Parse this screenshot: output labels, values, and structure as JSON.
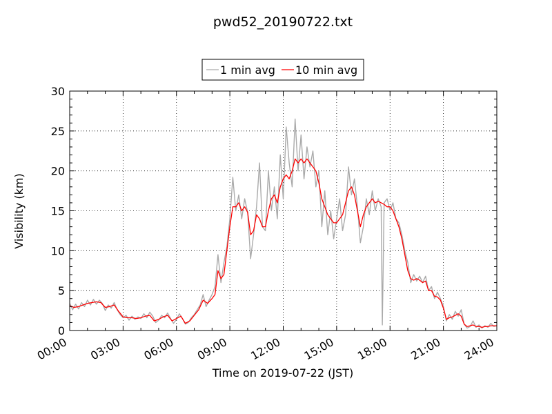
{
  "chart_data": {
    "type": "line",
    "title": "pwd52_20190722.txt",
    "xlabel": "Time on 2019-07-22 (JST)",
    "ylabel": "Visibility (km)",
    "xlim": [
      "00:00",
      "24:00"
    ],
    "ylim": [
      0,
      30
    ],
    "x_ticks": [
      "00:00",
      "03:00",
      "06:00",
      "09:00",
      "12:00",
      "15:00",
      "18:00",
      "21:00",
      "24:00"
    ],
    "y_ticks": [
      "0",
      "5",
      "10",
      "15",
      "20",
      "25",
      "30"
    ],
    "grid": true,
    "legend_position": "top-center",
    "series": [
      {
        "name": "1 min avg",
        "color": "#aaaaaa",
        "points": [
          [
            "00:00",
            3.4
          ],
          [
            "00:10",
            2.6
          ],
          [
            "00:20",
            3.3
          ],
          [
            "00:30",
            2.7
          ],
          [
            "00:40",
            3.5
          ],
          [
            "00:50",
            3.0
          ],
          [
            "01:00",
            3.8
          ],
          [
            "01:10",
            3.2
          ],
          [
            "01:20",
            3.9
          ],
          [
            "01:30",
            3.3
          ],
          [
            "01:40",
            3.8
          ],
          [
            "01:50",
            3.4
          ],
          [
            "02:00",
            2.5
          ],
          [
            "02:10",
            3.2
          ],
          [
            "02:20",
            2.8
          ],
          [
            "02:30",
            3.5
          ],
          [
            "02:40",
            2.6
          ],
          [
            "02:50",
            2.0
          ],
          [
            "03:00",
            1.6
          ],
          [
            "03:10",
            1.9
          ],
          [
            "03:20",
            1.3
          ],
          [
            "03:30",
            1.8
          ],
          [
            "03:40",
            1.4
          ],
          [
            "03:50",
            1.7
          ],
          [
            "04:00",
            1.5
          ],
          [
            "04:10",
            2.1
          ],
          [
            "04:20",
            1.6
          ],
          [
            "04:30",
            2.3
          ],
          [
            "04:40",
            1.8
          ],
          [
            "04:50",
            1.0
          ],
          [
            "05:00",
            1.3
          ],
          [
            "05:10",
            1.9
          ],
          [
            "05:20",
            1.6
          ],
          [
            "05:30",
            2.2
          ],
          [
            "05:40",
            1.5
          ],
          [
            "05:50",
            0.9
          ],
          [
            "06:00",
            1.4
          ],
          [
            "06:10",
            2.1
          ],
          [
            "06:20",
            1.5
          ],
          [
            "06:30",
            0.8
          ],
          [
            "06:40",
            1.0
          ],
          [
            "06:50",
            1.6
          ],
          [
            "07:00",
            2.0
          ],
          [
            "07:10",
            2.6
          ],
          [
            "07:20",
            3.2
          ],
          [
            "07:30",
            4.5
          ],
          [
            "07:40",
            3.0
          ],
          [
            "07:50",
            3.8
          ],
          [
            "08:00",
            4.5
          ],
          [
            "08:10",
            5.5
          ],
          [
            "08:20",
            9.5
          ],
          [
            "08:30",
            6.0
          ],
          [
            "08:40",
            8.5
          ],
          [
            "08:50",
            10.5
          ],
          [
            "09:00",
            14.0
          ],
          [
            "09:10",
            19.2
          ],
          [
            "09:20",
            15.0
          ],
          [
            "09:30",
            17.0
          ],
          [
            "09:40",
            14.0
          ],
          [
            "09:50",
            16.5
          ],
          [
            "10:00",
            14.8
          ],
          [
            "10:10",
            9.0
          ],
          [
            "10:20",
            12.0
          ],
          [
            "10:30",
            15.5
          ],
          [
            "10:40",
            21.0
          ],
          [
            "10:50",
            13.0
          ],
          [
            "11:00",
            12.5
          ],
          [
            "11:10",
            20.0
          ],
          [
            "11:20",
            15.0
          ],
          [
            "11:30",
            18.0
          ],
          [
            "11:40",
            14.0
          ],
          [
            "11:50",
            22.0
          ],
          [
            "12:00",
            16.5
          ],
          [
            "12:10",
            25.5
          ],
          [
            "12:20",
            21.0
          ],
          [
            "12:30",
            18.0
          ],
          [
            "12:40",
            26.5
          ],
          [
            "12:50",
            20.0
          ],
          [
            "13:00",
            24.5
          ],
          [
            "13:10",
            19.0
          ],
          [
            "13:20",
            23.0
          ],
          [
            "13:30",
            20.5
          ],
          [
            "13:40",
            22.5
          ],
          [
            "13:50",
            18.0
          ],
          [
            "14:00",
            20.0
          ],
          [
            "14:10",
            13.0
          ],
          [
            "14:20",
            17.5
          ],
          [
            "14:30",
            12.0
          ],
          [
            "14:40",
            15.0
          ],
          [
            "14:50",
            11.5
          ],
          [
            "15:00",
            14.0
          ],
          [
            "15:10",
            16.5
          ],
          [
            "15:20",
            12.5
          ],
          [
            "15:30",
            14.5
          ],
          [
            "15:40",
            20.5
          ],
          [
            "15:50",
            17.0
          ],
          [
            "16:00",
            19.0
          ],
          [
            "16:10",
            15.5
          ],
          [
            "16:20",
            11.0
          ],
          [
            "16:30",
            13.0
          ],
          [
            "16:40",
            16.5
          ],
          [
            "16:50",
            14.5
          ],
          [
            "17:00",
            17.5
          ],
          [
            "17:10",
            15.0
          ],
          [
            "17:20",
            16.5
          ],
          [
            "17:30",
            15.5
          ],
          [
            "17:34",
            0.7
          ],
          [
            "17:40",
            16.0
          ],
          [
            "17:50",
            16.5
          ],
          [
            "18:00",
            15.0
          ],
          [
            "18:10",
            16.0
          ],
          [
            "18:20",
            14.0
          ],
          [
            "18:30",
            13.5
          ],
          [
            "18:40",
            12.0
          ],
          [
            "18:50",
            10.0
          ],
          [
            "19:00",
            8.5
          ],
          [
            "19:10",
            6.0
          ],
          [
            "19:20",
            7.0
          ],
          [
            "19:30",
            6.2
          ],
          [
            "19:40",
            6.8
          ],
          [
            "19:50",
            6.0
          ],
          [
            "20:00",
            6.8
          ],
          [
            "20:10",
            5.0
          ],
          [
            "20:20",
            5.5
          ],
          [
            "20:30",
            4.0
          ],
          [
            "20:40",
            4.8
          ],
          [
            "20:50",
            4.0
          ],
          [
            "21:00",
            3.0
          ],
          [
            "21:10",
            1.2
          ],
          [
            "21:20",
            2.0
          ],
          [
            "21:30",
            1.4
          ],
          [
            "21:40",
            2.4
          ],
          [
            "21:50",
            1.8
          ],
          [
            "22:00",
            2.6
          ],
          [
            "22:10",
            0.8
          ],
          [
            "22:20",
            0.3
          ],
          [
            "22:30",
            0.5
          ],
          [
            "22:40",
            1.2
          ],
          [
            "22:50",
            0.4
          ],
          [
            "23:00",
            0.7
          ],
          [
            "23:10",
            0.3
          ],
          [
            "23:20",
            0.6
          ],
          [
            "23:30",
            0.4
          ],
          [
            "23:40",
            0.9
          ],
          [
            "23:50",
            0.5
          ],
          [
            "24:00",
            0.6
          ]
        ]
      },
      {
        "name": "10 min avg",
        "color": "#ff0000",
        "points": [
          [
            "00:00",
            3.1
          ],
          [
            "00:15",
            2.9
          ],
          [
            "00:30",
            3.0
          ],
          [
            "00:45",
            3.2
          ],
          [
            "01:00",
            3.4
          ],
          [
            "01:15",
            3.5
          ],
          [
            "01:30",
            3.6
          ],
          [
            "01:45",
            3.5
          ],
          [
            "02:00",
            2.9
          ],
          [
            "02:15",
            3.0
          ],
          [
            "02:30",
            3.2
          ],
          [
            "02:45",
            2.4
          ],
          [
            "03:00",
            1.7
          ],
          [
            "03:15",
            1.6
          ],
          [
            "03:30",
            1.6
          ],
          [
            "03:45",
            1.5
          ],
          [
            "04:00",
            1.6
          ],
          [
            "04:15",
            1.8
          ],
          [
            "04:30",
            1.9
          ],
          [
            "04:45",
            1.2
          ],
          [
            "05:00",
            1.4
          ],
          [
            "05:15",
            1.7
          ],
          [
            "05:30",
            1.9
          ],
          [
            "05:45",
            1.2
          ],
          [
            "06:00",
            1.5
          ],
          [
            "06:15",
            1.8
          ],
          [
            "06:30",
            0.9
          ],
          [
            "06:45",
            1.2
          ],
          [
            "07:00",
            1.9
          ],
          [
            "07:15",
            2.6
          ],
          [
            "07:30",
            3.8
          ],
          [
            "07:45",
            3.4
          ],
          [
            "08:00",
            4.0
          ],
          [
            "08:10",
            4.5
          ],
          [
            "08:20",
            7.5
          ],
          [
            "08:30",
            6.5
          ],
          [
            "08:40",
            7.0
          ],
          [
            "08:50",
            10.0
          ],
          [
            "09:00",
            13.0
          ],
          [
            "09:10",
            15.5
          ],
          [
            "09:20",
            15.5
          ],
          [
            "09:30",
            16.0
          ],
          [
            "09:40",
            15.0
          ],
          [
            "09:50",
            15.5
          ],
          [
            "10:00",
            14.8
          ],
          [
            "10:10",
            12.0
          ],
          [
            "10:20",
            12.5
          ],
          [
            "10:30",
            14.5
          ],
          [
            "10:40",
            14.0
          ],
          [
            "10:50",
            13.0
          ],
          [
            "11:00",
            13.0
          ],
          [
            "11:10",
            15.0
          ],
          [
            "11:20",
            16.5
          ],
          [
            "11:30",
            17.0
          ],
          [
            "11:40",
            16.0
          ],
          [
            "11:50",
            18.0
          ],
          [
            "12:00",
            19.0
          ],
          [
            "12:10",
            19.5
          ],
          [
            "12:20",
            19.0
          ],
          [
            "12:30",
            20.0
          ],
          [
            "12:40",
            21.5
          ],
          [
            "12:50",
            21.0
          ],
          [
            "13:00",
            21.5
          ],
          [
            "13:10",
            21.0
          ],
          [
            "13:20",
            21.5
          ],
          [
            "13:30",
            21.0
          ],
          [
            "13:40",
            20.5
          ],
          [
            "13:50",
            20.0
          ],
          [
            "14:00",
            18.5
          ],
          [
            "14:10",
            16.5
          ],
          [
            "14:20",
            15.5
          ],
          [
            "14:30",
            14.5
          ],
          [
            "14:40",
            14.0
          ],
          [
            "14:50",
            13.5
          ],
          [
            "15:00",
            13.5
          ],
          [
            "15:10",
            14.0
          ],
          [
            "15:20",
            14.5
          ],
          [
            "15:30",
            16.0
          ],
          [
            "15:40",
            17.5
          ],
          [
            "15:50",
            18.0
          ],
          [
            "16:00",
            17.0
          ],
          [
            "16:10",
            15.0
          ],
          [
            "16:20",
            13.0
          ],
          [
            "16:30",
            14.5
          ],
          [
            "16:40",
            15.5
          ],
          [
            "16:50",
            16.0
          ],
          [
            "17:00",
            16.5
          ],
          [
            "17:10",
            16.0
          ],
          [
            "17:20",
            16.2
          ],
          [
            "17:30",
            16.0
          ],
          [
            "17:40",
            15.8
          ],
          [
            "17:50",
            15.5
          ],
          [
            "18:00",
            15.5
          ],
          [
            "18:10",
            15.0
          ],
          [
            "18:20",
            14.0
          ],
          [
            "18:30",
            13.0
          ],
          [
            "18:40",
            11.5
          ],
          [
            "18:50",
            9.5
          ],
          [
            "19:00",
            7.5
          ],
          [
            "19:10",
            6.5
          ],
          [
            "19:20",
            6.3
          ],
          [
            "19:30",
            6.5
          ],
          [
            "19:40",
            6.3
          ],
          [
            "19:50",
            6.0
          ],
          [
            "20:00",
            6.2
          ],
          [
            "20:10",
            5.0
          ],
          [
            "20:20",
            5.0
          ],
          [
            "20:30",
            4.3
          ],
          [
            "20:40",
            4.2
          ],
          [
            "20:50",
            3.8
          ],
          [
            "21:00",
            2.8
          ],
          [
            "21:10",
            1.4
          ],
          [
            "21:20",
            1.6
          ],
          [
            "21:30",
            1.7
          ],
          [
            "21:40",
            1.9
          ],
          [
            "21:50",
            2.1
          ],
          [
            "22:00",
            1.8
          ],
          [
            "22:10",
            0.8
          ],
          [
            "22:20",
            0.5
          ],
          [
            "22:30",
            0.6
          ],
          [
            "22:40",
            0.7
          ],
          [
            "22:50",
            0.5
          ],
          [
            "23:00",
            0.5
          ],
          [
            "23:10",
            0.4
          ],
          [
            "23:20",
            0.5
          ],
          [
            "23:30",
            0.5
          ],
          [
            "23:40",
            0.6
          ],
          [
            "23:50",
            0.6
          ],
          [
            "24:00",
            0.6
          ]
        ]
      }
    ]
  }
}
